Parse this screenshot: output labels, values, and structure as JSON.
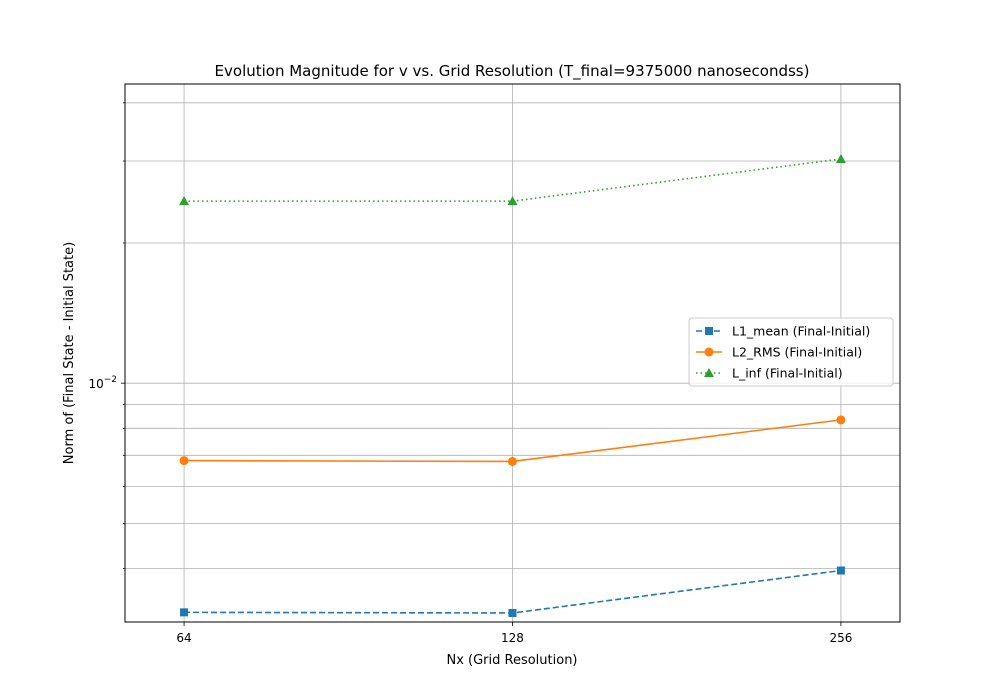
{
  "chart_data": {
    "type": "line",
    "title": "Evolution Magnitude for v vs. Grid Resolution (T_final=9375000 nanosecondss)",
    "xlabel": "Nx (Grid Resolution)",
    "ylabel": "Norm of (Final State - Initial State)",
    "x_scale": "log2",
    "y_scale": "log",
    "x": [
      64,
      128,
      256
    ],
    "x_tick_labels": [
      "64",
      "128",
      "256"
    ],
    "xlim": [
      56.5,
      290
    ],
    "ylim": [
      0.00307,
      0.0439
    ],
    "y_major_ticks": [
      0.01
    ],
    "y_tick_label": "10",
    "y_tick_label_exp": "−2",
    "grid": true,
    "legend_position": "center-right",
    "series": [
      {
        "name": "L1_mean (Final-Initial)",
        "values": [
          0.00322,
          0.00321,
          0.00396
        ],
        "color": "#1f77b4",
        "marker": "square",
        "linestyle": "dashed"
      },
      {
        "name": "L2_RMS (Final-Initial)",
        "values": [
          0.00682,
          0.00679,
          0.00834
        ],
        "color": "#ff7f0e",
        "marker": "circle",
        "linestyle": "solid"
      },
      {
        "name": "L_inf (Final-Initial)",
        "values": [
          0.0246,
          0.0246,
          0.0303
        ],
        "color": "#2ca02c",
        "marker": "triangle",
        "linestyle": "dotted"
      }
    ]
  }
}
